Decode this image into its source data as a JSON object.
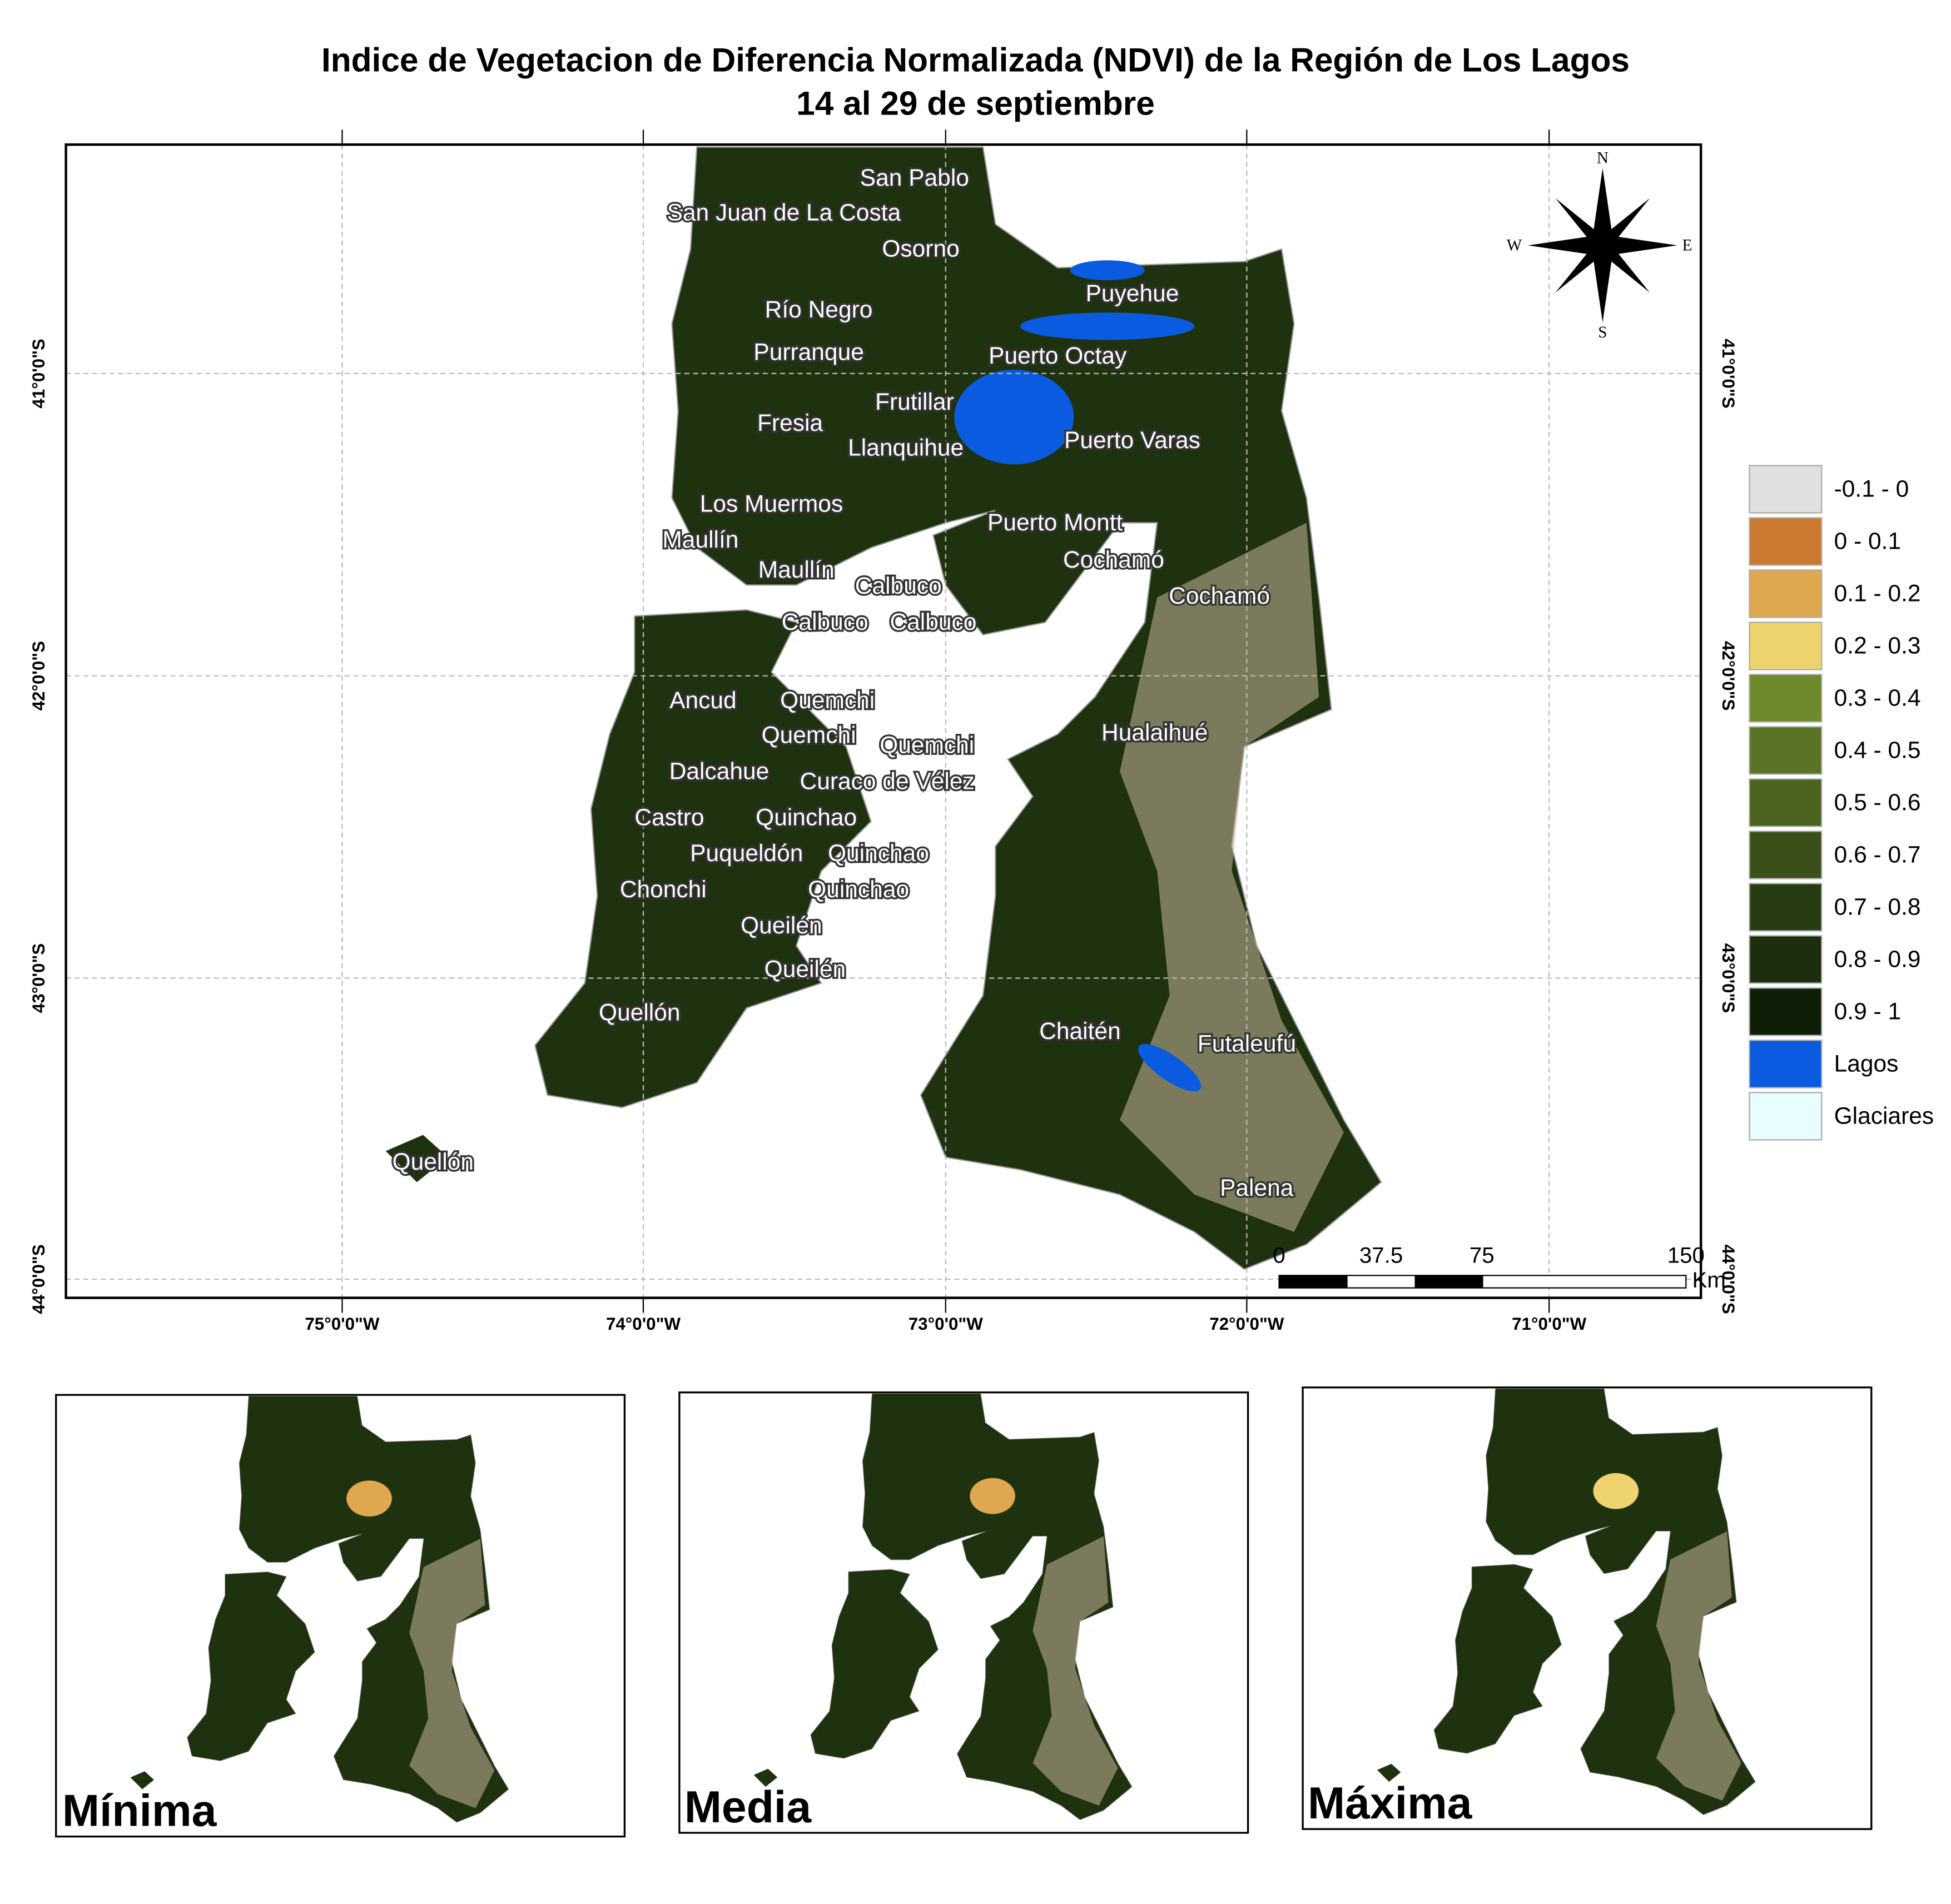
{
  "title": [
    "Indice de Vegetacion de Diferencia Normalizada (NDVI) de la Región de Los Lagos",
    "14 al 29 de septiembre"
  ],
  "map": {
    "lon_labels": [
      "75°0'0\"W",
      "74°0'0\"W",
      "73°0'0\"W",
      "72°0'0\"W",
      "71°0'0\"W"
    ],
    "lat_labels": [
      "41°0'0\"S",
      "42°0'0\"S",
      "43°0'0\"S",
      "44°0'0\"S"
    ],
    "places": [
      "San Pablo",
      "San Juan de La Costa",
      "Osorno",
      "Puyehue",
      "Río Negro",
      "Purranque",
      "Puerto Octay",
      "Frutillar",
      "Fresia",
      "Llanquihue",
      "Puerto Varas",
      "Los Muermos",
      "Puerto Montt",
      "Maullín",
      "Cochamó",
      "Maullín",
      "Calbuco",
      "Cochamó",
      "Calbuco",
      "Calbuco",
      "Ancud",
      "Quemchi",
      "Quemchi",
      "Quemchi",
      "Hualaihué",
      "Dalcahue",
      "Curaco de Vélez",
      "Castro",
      "Quinchao",
      "Puqueldón",
      "Quinchao",
      "Chonchi",
      "Quinchao",
      "Queilén",
      "Queilén",
      "Quellón",
      "Chaitén",
      "Futaleufú",
      "Quellón",
      "Palena"
    ],
    "compass": [
      "N",
      "S",
      "E",
      "W"
    ],
    "scale_bar": {
      "labels": [
        0,
        37.5,
        75,
        150
      ],
      "unit": "Km"
    }
  },
  "legend": [
    {
      "label": "-0.1 - 0",
      "color": "#e0e0e0"
    },
    {
      "label": "0 - 0.1",
      "color": "#cc7a30"
    },
    {
      "label": "0.1 - 0.2",
      "color": "#e0a84e"
    },
    {
      "label": "0.2 - 0.3",
      "color": "#efd36e"
    },
    {
      "label": "0.3 - 0.4",
      "color": "#6e8a2a"
    },
    {
      "label": "0.4 - 0.5",
      "color": "#5b7324"
    },
    {
      "label": "0.5 - 0.6",
      "color": "#4c6320"
    },
    {
      "label": "0.6 - 0.7",
      "color": "#3a5018"
    },
    {
      "label": "0.7 - 0.8",
      "color": "#283c12"
    },
    {
      "label": "0.8 - 0.9",
      "color": "#1d2e0e"
    },
    {
      "label": "0.9 - 1",
      "color": "#0f1e07"
    },
    {
      "label": "Lagos",
      "color": "#0a5be0"
    },
    {
      "label": "Glaciares",
      "color": "#e8fdfd"
    }
  ],
  "insets": [
    "Mínima",
    "Media",
    "Máxima"
  ]
}
